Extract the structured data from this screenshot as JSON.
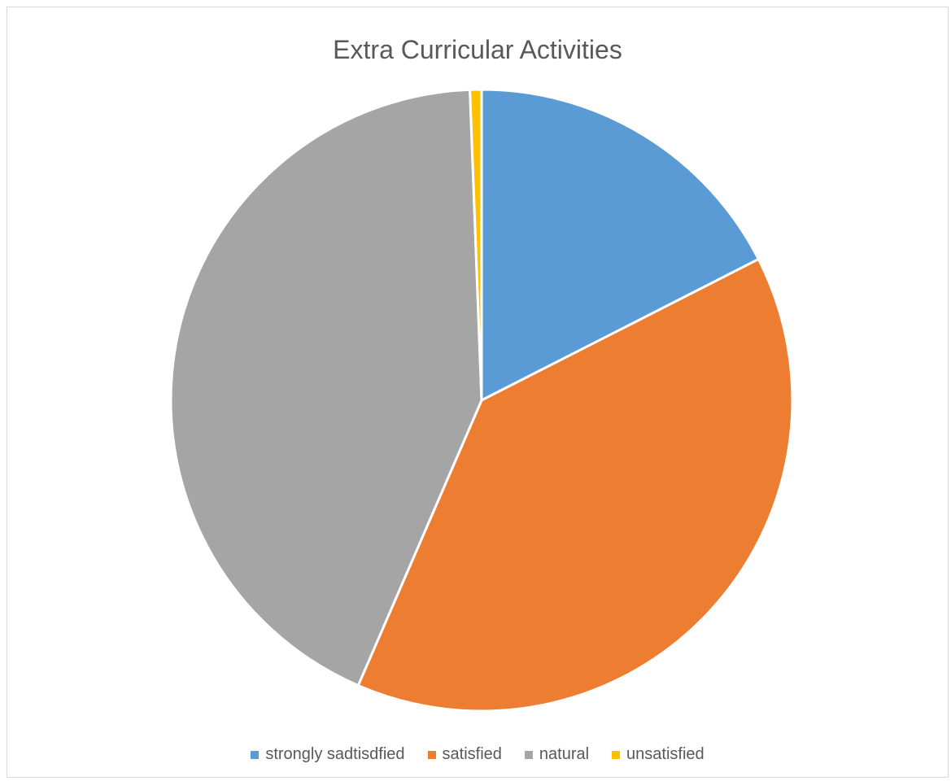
{
  "chart_data": {
    "type": "pie",
    "title": "Extra Curricular Activities",
    "categories": [
      "strongly sadtisdfied",
      "satisfied",
      "natural",
      "unsatisfied"
    ],
    "values": [
      17.5,
      39.0,
      42.9,
      0.6
    ],
    "colors": [
      "#5b9bd5",
      "#ed7d31",
      "#a5a5a5",
      "#ffc000"
    ],
    "legend_position": "bottom",
    "start_angle": "12 o'clock",
    "direction": "clockwise"
  }
}
